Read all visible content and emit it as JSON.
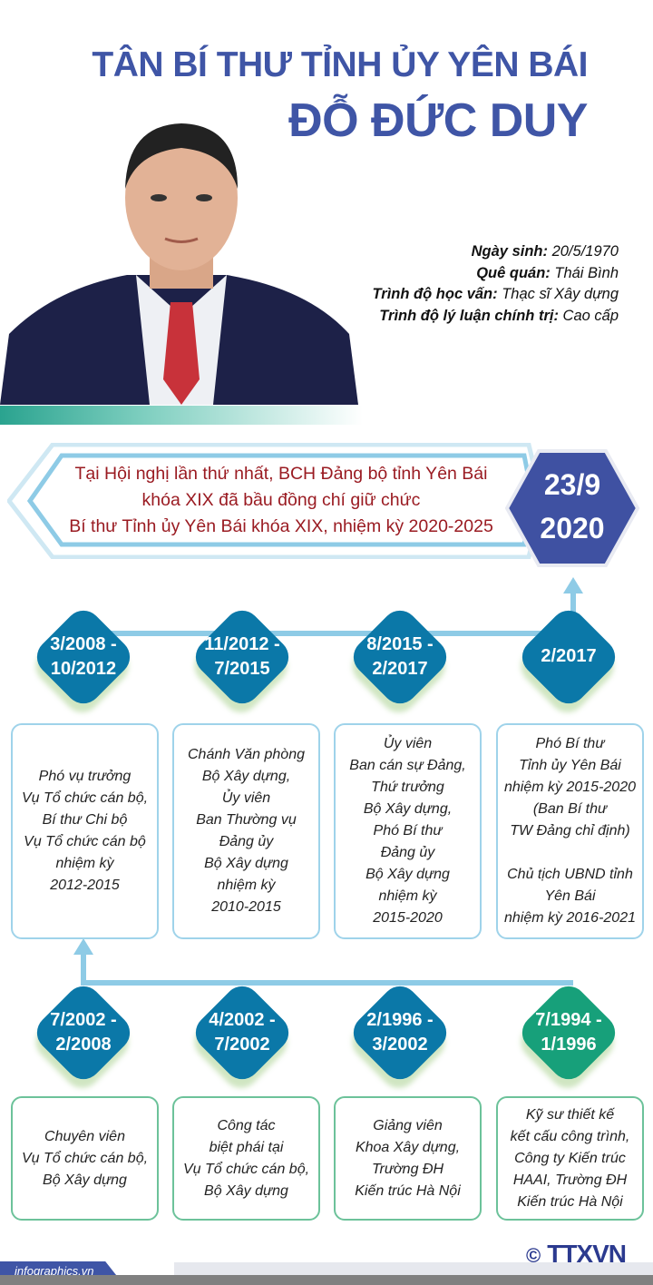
{
  "header": {
    "title_line1": "TÂN BÍ THƯ TỈNH ỦY YÊN BÁI",
    "title_line2": "ĐỖ ĐỨC DUY"
  },
  "profile": [
    {
      "label": "Ngày sinh:",
      "value": " 20/5/1970"
    },
    {
      "label": "Quê quán:",
      "value": " Thái Bình"
    },
    {
      "label": "Trình độ học vấn:",
      "value": " Thạc sĩ Xây dựng"
    },
    {
      "label": "Trình độ lý luận chính trị:",
      "value": " Cao cấp"
    }
  ],
  "highlight": {
    "text": "Tại Hội nghị lần thứ nhất, BCH Đảng bộ tỉnh Yên Bái\nkhóa XIX đã bầu đồng chí giữ chức\nBí thư Tỉnh ủy Yên Bái khóa XIX, nhiệm kỳ 2020-2025",
    "date_line1": "23/9",
    "date_line2": "2020",
    "color": "#3f51a2"
  },
  "timeline_top": [
    {
      "date": "3/2008 -\n10/2012",
      "text": "Phó vụ trưởng\nVụ Tổ chức cán bộ,\nBí thư Chi bộ\nVụ Tổ chức cán bộ\nnhiệm kỳ\n2012-2015"
    },
    {
      "date": "11/2012 -\n7/2015",
      "text": "Chánh Văn phòng\nBộ Xây dựng,\nỦy viên\nBan Thường vụ\nĐảng ủy\nBộ Xây dựng\nnhiệm kỳ\n2010-2015"
    },
    {
      "date": "8/2015 -\n2/2017",
      "text": "Ủy viên\nBan cán sự Đảng,\nThứ trưởng\nBộ Xây dựng,\nPhó Bí thư\nĐảng ủy\nBộ Xây dựng\nnhiệm kỳ\n2015-2020"
    },
    {
      "date": "2/2017",
      "text": "Phó Bí thư\nTỉnh ủy Yên Bái\nnhiệm kỳ 2015-2020\n(Ban Bí thư\nTW Đảng chỉ định)\n\nChủ tịch UBND tỉnh\nYên Bái\nnhiệm kỳ 2016-2021"
    }
  ],
  "timeline_bottom": [
    {
      "date": "7/2002 -\n2/2008",
      "text": "Chuyên viên\nVụ Tổ chức cán bộ,\nBộ Xây dựng"
    },
    {
      "date": "4/2002 -\n7/2002",
      "text": "Công tác\nbiệt phái tại\nVụ Tổ chức cán bộ,\nBộ Xây dựng"
    },
    {
      "date": "2/1996 -\n3/2002",
      "text": "Giảng viên\nKhoa Xây dựng,\nTrường ĐH\nKiến trúc Hà Nội"
    },
    {
      "date": "7/1994 -\n1/1996",
      "text": "Kỹ sư thiết kế\nkết cấu công trình,\nCông ty Kiến trúc\nHAAI, Trường ĐH\nKiến trúc Hà Nội"
    }
  ],
  "colors": {
    "title": "#3f55a6",
    "diamond": "#0b78a8",
    "diamond_first_job": "#17a07a",
    "highlight_text": "#9a1b22"
  },
  "footer": {
    "site": "infographics.vn",
    "copyright": "©",
    "logo": "TTXVN"
  }
}
